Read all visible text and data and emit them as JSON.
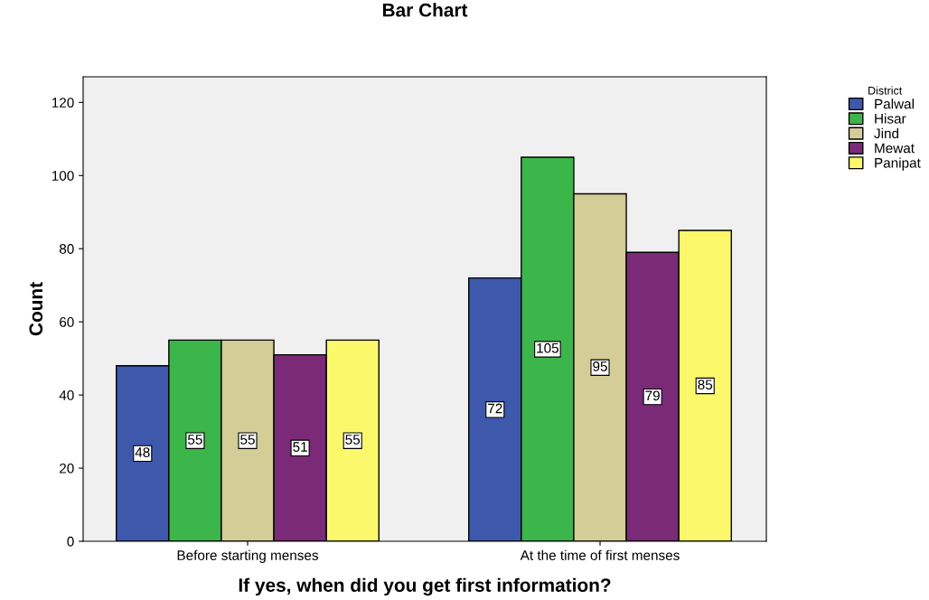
{
  "chart_data": {
    "type": "bar",
    "title": "Bar Chart",
    "xlabel": "If yes, when did you get first information?",
    "ylabel": "Count",
    "categories": [
      "Before starting menses",
      "At the time of first menses"
    ],
    "series": [
      {
        "name": "Palwal",
        "color": "#3e58ac",
        "values": [
          48,
          72
        ]
      },
      {
        "name": "Hisar",
        "color": "#3cb54a",
        "values": [
          55,
          105
        ]
      },
      {
        "name": "Jind",
        "color": "#d4cd97",
        "values": [
          55,
          95
        ]
      },
      {
        "name": "Mewat",
        "color": "#7b2a78",
        "values": [
          51,
          79
        ]
      },
      {
        "name": "Panipat",
        "color": "#fbf96b",
        "values": [
          55,
          85
        ]
      }
    ],
    "legend_title": "District",
    "legend": "top right",
    "ylim": [
      0,
      127
    ],
    "yticks": [
      0,
      20,
      40,
      60,
      80,
      100,
      120
    ],
    "grid": false,
    "data_labels": true
  }
}
